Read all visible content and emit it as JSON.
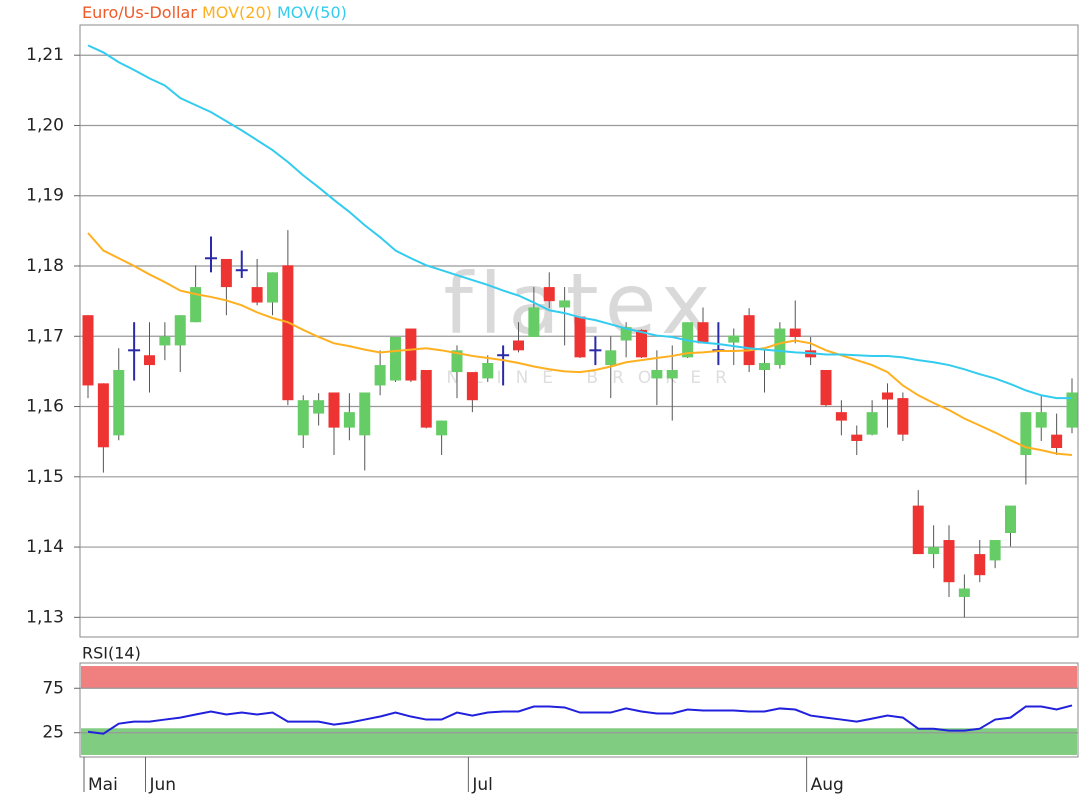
{
  "chart_data": [
    {
      "type": "candlestick",
      "watermark": {
        "logo": "flatex",
        "tagline": "ONLINE BROKER"
      },
      "ylim": [
        1.1272,
        1.2143
      ],
      "yticks": [
        {
          "value": 1.13,
          "label": "1,13"
        },
        {
          "value": 1.14,
          "label": "1,14"
        },
        {
          "value": 1.15,
          "label": "1,15"
        },
        {
          "value": 1.16,
          "label": "1,16"
        },
        {
          "value": 1.17,
          "label": "1,17"
        },
        {
          "value": 1.18,
          "label": "1,18"
        },
        {
          "value": 1.19,
          "label": "1,19"
        },
        {
          "value": 1.2,
          "label": "1,20"
        },
        {
          "value": 1.21,
          "label": "1,21"
        }
      ],
      "grid": true,
      "series": [
        {
          "name": "Euro/Us-Dollar",
          "color": "#f05a28",
          "up_color": "#66cc66",
          "down_color": "#ee3333",
          "doji_color": "#2a2aa8",
          "open": [
            1.173,
            1.1633,
            1.1559,
            1.168,
            1.1673,
            1.1687,
            1.1687,
            1.172,
            1.1811,
            1.181,
            1.1794,
            1.177,
            1.1748,
            1.1801,
            1.1559,
            1.159,
            1.162,
            1.157,
            1.1559,
            1.163,
            1.1637,
            1.1711,
            1.1652,
            1.1559,
            1.1649,
            1.1649,
            1.164,
            1.1673,
            1.1694,
            1.1699,
            1.177,
            1.1741,
            1.1728,
            1.168,
            1.1659,
            1.1694,
            1.1709,
            1.164,
            1.164,
            1.167,
            1.172,
            1.168,
            1.1691,
            1.173,
            1.1652,
            1.1659,
            1.1711,
            1.168,
            1.1652,
            1.1592,
            1.156,
            1.156,
            1.162,
            1.1612,
            1.1459,
            1.139,
            1.141,
            1.1329,
            1.139,
            1.1381,
            1.142,
            1.1531,
            1.157,
            1.156,
            1.157
          ],
          "high": [
            1.173,
            1.1633,
            1.1683,
            1.172,
            1.172,
            1.172,
            1.173,
            1.1801,
            1.1842,
            1.181,
            1.1822,
            1.181,
            1.1791,
            1.1851,
            1.1616,
            1.1619,
            1.162,
            1.1619,
            1.162,
            1.168,
            1.1699,
            1.1711,
            1.1652,
            1.158,
            1.1687,
            1.1649,
            1.1673,
            1.1687,
            1.172,
            1.177,
            1.1791,
            1.177,
            1.1728,
            1.17,
            1.17,
            1.172,
            1.171,
            1.168,
            1.1687,
            1.172,
            1.1741,
            1.172,
            1.1711,
            1.174,
            1.168,
            1.172,
            1.1751,
            1.1699,
            1.1652,
            1.1609,
            1.1573,
            1.1609,
            1.1633,
            1.162,
            1.1481,
            1.1431,
            1.1431,
            1.1361,
            1.141,
            1.141,
            1.1459,
            1.1592,
            1.1616,
            1.159,
            1.164
          ],
          "low": [
            1.1612,
            1.1506,
            1.1552,
            1.1637,
            1.162,
            1.1666,
            1.1649,
            1.172,
            1.1791,
            1.173,
            1.1783,
            1.1744,
            1.173,
            1.1602,
            1.1541,
            1.1573,
            1.1531,
            1.1552,
            1.1509,
            1.1616,
            1.1635,
            1.1635,
            1.1569,
            1.1531,
            1.1612,
            1.1592,
            1.1635,
            1.163,
            1.1677,
            1.1699,
            1.174,
            1.1687,
            1.1669,
            1.1659,
            1.1612,
            1.167,
            1.1669,
            1.1602,
            1.158,
            1.1669,
            1.169,
            1.1659,
            1.1659,
            1.1649,
            1.162,
            1.1654,
            1.169,
            1.1659,
            1.16,
            1.1559,
            1.1531,
            1.1559,
            1.157,
            1.1551,
            1.139,
            1.137,
            1.1329,
            1.13,
            1.135,
            1.137,
            1.1401,
            1.1489,
            1.1551,
            1.1531,
            1.1562
          ],
          "close": [
            1.163,
            1.1542,
            1.1652,
            1.168,
            1.1659,
            1.17,
            1.173,
            1.177,
            1.1811,
            1.177,
            1.1794,
            1.1748,
            1.1791,
            1.1609,
            1.1609,
            1.1609,
            1.157,
            1.1592,
            1.162,
            1.1659,
            1.1699,
            1.1637,
            1.157,
            1.158,
            1.168,
            1.1609,
            1.1662,
            1.1673,
            1.168,
            1.1741,
            1.175,
            1.1751,
            1.167,
            1.168,
            1.168,
            1.1713,
            1.167,
            1.1652,
            1.1652,
            1.172,
            1.169,
            1.168,
            1.1701,
            1.1659,
            1.1662,
            1.1711,
            1.1699,
            1.167,
            1.1602,
            1.158,
            1.1551,
            1.1592,
            1.161,
            1.156,
            1.139,
            1.14,
            1.135,
            1.1341,
            1.136,
            1.141,
            1.1459,
            1.1592,
            1.1592,
            1.1541,
            1.162
          ]
        },
        {
          "name": "MOV(20)",
          "color": "#ffb020",
          "values": [
            1.1847,
            1.1822,
            1.1811,
            1.18,
            1.1788,
            1.1777,
            1.1765,
            1.176,
            1.1756,
            1.1751,
            1.1744,
            1.1734,
            1.1726,
            1.172,
            1.1709,
            1.1699,
            1.169,
            1.1686,
            1.1681,
            1.1677,
            1.1679,
            1.1681,
            1.1683,
            1.168,
            1.1676,
            1.1672,
            1.1669,
            1.1666,
            1.1662,
            1.1657,
            1.1653,
            1.165,
            1.1649,
            1.1652,
            1.1657,
            1.1663,
            1.1666,
            1.1669,
            1.1672,
            1.1676,
            1.1677,
            1.1679,
            1.1679,
            1.168,
            1.1683,
            1.169,
            1.1694,
            1.169,
            1.168,
            1.1673,
            1.1666,
            1.1659,
            1.1649,
            1.163,
            1.1616,
            1.1605,
            1.1595,
            1.1583,
            1.1573,
            1.1563,
            1.1552,
            1.1542,
            1.1538,
            1.1533,
            1.1531
          ]
        },
        {
          "name": "MOV(50)",
          "color": "#33ccee",
          "values": [
            1.2114,
            1.2104,
            1.209,
            1.2079,
            1.2067,
            1.2057,
            1.2039,
            1.2029,
            1.2019,
            1.2006,
            1.1993,
            1.1979,
            1.1965,
            1.1948,
            1.1929,
            1.1912,
            1.1894,
            1.1877,
            1.1858,
            1.1841,
            1.1822,
            1.1811,
            1.1801,
            1.1794,
            1.1787,
            1.178,
            1.1773,
            1.1765,
            1.1758,
            1.1748,
            1.1737,
            1.1733,
            1.1727,
            1.1723,
            1.1717,
            1.1711,
            1.1706,
            1.1701,
            1.1699,
            1.1694,
            1.1691,
            1.1689,
            1.1686,
            1.1683,
            1.1681,
            1.1679,
            1.1677,
            1.1676,
            1.1674,
            1.1674,
            1.1673,
            1.1672,
            1.1672,
            1.167,
            1.1666,
            1.1663,
            1.1659,
            1.1653,
            1.1646,
            1.164,
            1.1632,
            1.1623,
            1.1616,
            1.1612,
            1.1612
          ]
        }
      ]
    },
    {
      "type": "line",
      "categories": [
        "Mai",
        null,
        null,
        null,
        "Jun",
        null,
        null,
        null,
        null,
        null,
        null,
        null,
        null,
        null,
        null,
        null,
        null,
        null,
        null,
        null,
        null,
        null,
        null,
        null,
        null,
        "Jul",
        null,
        null,
        null,
        null,
        null,
        null,
        null,
        null,
        null,
        null,
        null,
        null,
        null,
        null,
        null,
        null,
        null,
        null,
        null,
        null,
        null,
        "Aug",
        null,
        null,
        null,
        null,
        null,
        null,
        null,
        null,
        null,
        null,
        null,
        null,
        null,
        null,
        null,
        null,
        null
      ],
      "ylim": [
        -2.3,
        103.4
      ],
      "yticks": [
        25,
        75
      ],
      "grid": true,
      "zones": [
        {
          "from": 75,
          "to": 100,
          "color": "#f08080"
        },
        {
          "from": 0,
          "to": 30,
          "color": "#80cc80"
        }
      ],
      "series": [
        {
          "name": "RSI(14)",
          "color": "#2020dd",
          "values": [
            26.1,
            23.9,
            35.2,
            37.5,
            37.5,
            39.8,
            42.0,
            45.5,
            48.9,
            45.5,
            47.7,
            45.5,
            47.7,
            37.5,
            37.5,
            37.5,
            34.1,
            36.4,
            39.8,
            43.2,
            47.7,
            43.2,
            39.8,
            39.8,
            47.7,
            44.3,
            47.7,
            48.9,
            48.9,
            54.5,
            54.5,
            53.4,
            47.7,
            47.7,
            47.7,
            52.3,
            48.9,
            46.6,
            46.6,
            51.1,
            50.0,
            50.0,
            50.0,
            48.9,
            48.9,
            52.3,
            51.1,
            44.3,
            42.0,
            39.8,
            37.5,
            40.9,
            44.3,
            42.0,
            29.5,
            29.5,
            27.3,
            27.3,
            29.5,
            39.8,
            42.0,
            54.5,
            54.5,
            51.1,
            55.7
          ]
        }
      ]
    }
  ]
}
